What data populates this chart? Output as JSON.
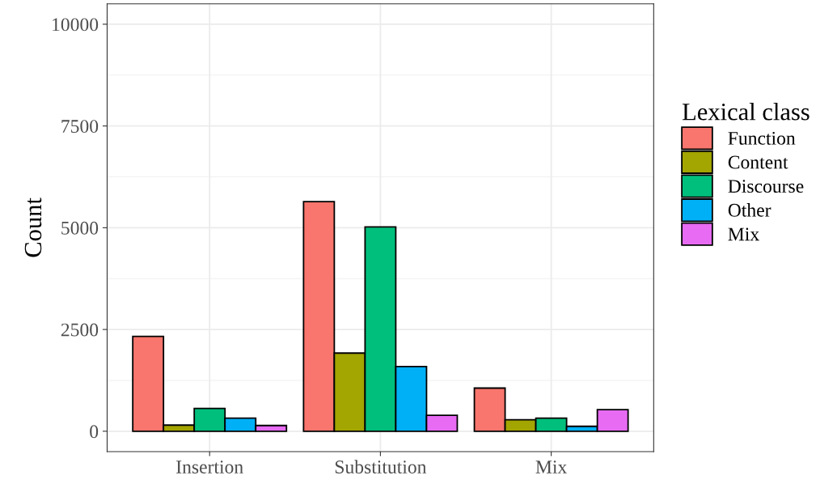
{
  "chart_data": {
    "type": "bar",
    "ylabel": "Count",
    "legend_title": "Lexical class",
    "categories": [
      "Insertion",
      "Substitution",
      "Mix"
    ],
    "series": [
      {
        "name": "Function",
        "color": "#f8766d",
        "values": [
          2330,
          5640,
          1060
        ]
      },
      {
        "name": "Content",
        "color": "#a3a500",
        "values": [
          150,
          1920,
          280
        ]
      },
      {
        "name": "Discourse",
        "color": "#00bf7d",
        "values": [
          560,
          5020,
          320
        ]
      },
      {
        "name": "Other",
        "color": "#00b0f6",
        "values": [
          320,
          1590,
          120
        ]
      },
      {
        "name": "Mix",
        "color": "#e76bf3",
        "values": [
          140,
          390,
          530
        ]
      }
    ],
    "ylim": [
      -500,
      10500
    ],
    "yticks": [
      0,
      2500,
      5000,
      7500,
      10000
    ],
    "grid": true,
    "legend": "right"
  }
}
